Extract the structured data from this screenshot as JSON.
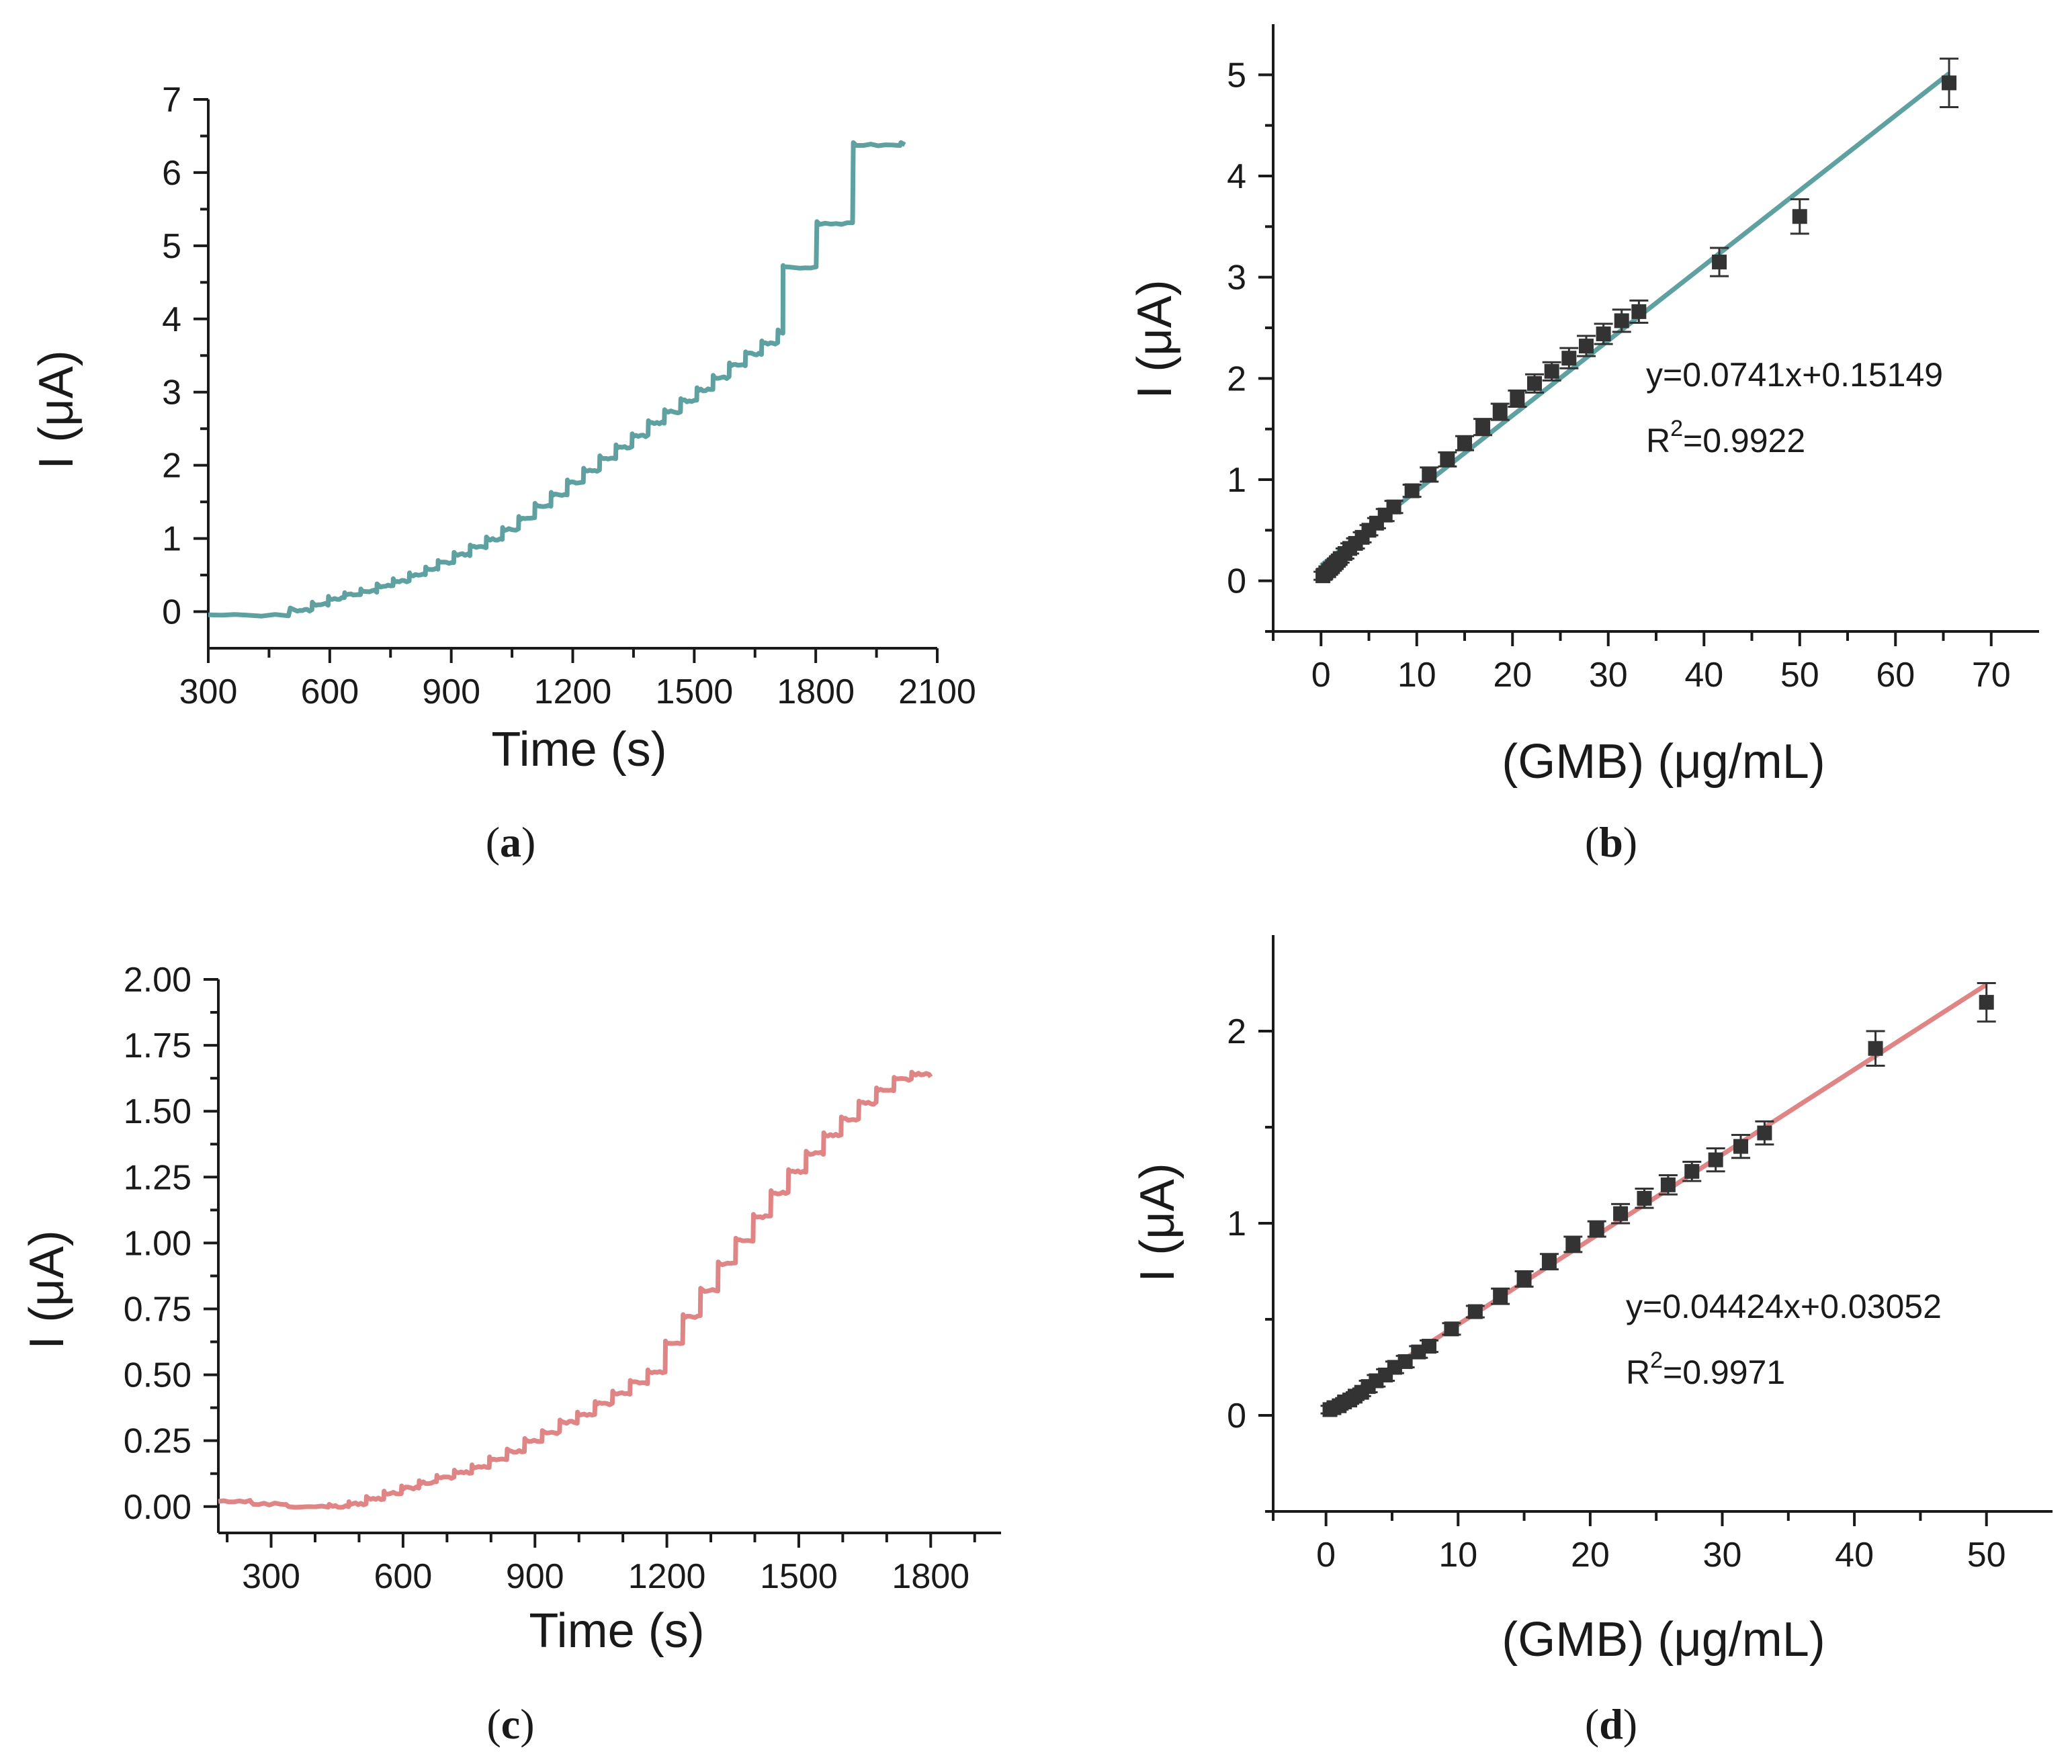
{
  "colors": {
    "teal": "#5fa0a0",
    "salmon": "#e08585",
    "marker": "#333333",
    "text": "#1a1a1a"
  },
  "chart_data": [
    {
      "panel": "(a)",
      "panel_letter": "a",
      "type": "line",
      "xlabel": "Time (s)",
      "ylabel": "I (μA)",
      "xlim": [
        300,
        2100
      ],
      "ylim": [
        -0.5,
        7
      ],
      "xticks": [
        300,
        600,
        900,
        1200,
        1500,
        1800,
        2100
      ],
      "yticks": [
        0,
        1,
        2,
        3,
        4,
        5,
        6,
        7
      ],
      "color": "#5fa0a0",
      "steps": [
        [
          300,
          -0.05
        ],
        [
          520,
          0.02
        ],
        [
          560,
          0.1
        ],
        [
          600,
          0.18
        ],
        [
          640,
          0.23
        ],
        [
          680,
          0.28
        ],
        [
          720,
          0.35
        ],
        [
          760,
          0.42
        ],
        [
          800,
          0.5
        ],
        [
          840,
          0.58
        ],
        [
          870,
          0.67
        ],
        [
          910,
          0.78
        ],
        [
          950,
          0.88
        ],
        [
          990,
          0.99
        ],
        [
          1030,
          1.12
        ],
        [
          1070,
          1.27
        ],
        [
          1110,
          1.45
        ],
        [
          1150,
          1.6
        ],
        [
          1190,
          1.77
        ],
        [
          1230,
          1.93
        ],
        [
          1270,
          2.1
        ],
        [
          1310,
          2.25
        ],
        [
          1350,
          2.4
        ],
        [
          1390,
          2.58
        ],
        [
          1430,
          2.73
        ],
        [
          1470,
          2.88
        ],
        [
          1510,
          3.03
        ],
        [
          1550,
          3.2
        ],
        [
          1590,
          3.37
        ],
        [
          1630,
          3.52
        ],
        [
          1670,
          3.67
        ],
        [
          1710,
          3.82
        ],
        [
          1720,
          4.7
        ],
        [
          1810,
          5.3
        ],
        [
          1900,
          6.38
        ],
        [
          2020,
          6.38
        ]
      ],
      "series": [
        {
          "name": "",
          "points": []
        }
      ]
    },
    {
      "panel": "(b)",
      "panel_letter": "b",
      "type": "scatter",
      "xlabel": "(GMB) (μg/mL)",
      "ylabel": "I (μA)",
      "xlim": [
        -5,
        75
      ],
      "ylim": [
        -0.5,
        5.5
      ],
      "xticks": [
        0,
        10,
        20,
        30,
        40,
        50,
        60,
        70
      ],
      "yticks": [
        0,
        1,
        2,
        3,
        4,
        5
      ],
      "color": "#5fa0a0",
      "equation": "y=0.0741x+0.15149",
      "r2_prefix": "R",
      "r2_sup": "2",
      "r2_value": "=0.9922",
      "fit": {
        "slope": 0.0741,
        "intercept": 0.15149,
        "x_range": [
          0,
          65.6
        ]
      },
      "points": [
        {
          "x": 0.2,
          "y": 0.05,
          "err": 0.04
        },
        {
          "x": 0.5,
          "y": 0.08,
          "err": 0.04
        },
        {
          "x": 0.8,
          "y": 0.1,
          "err": 0.04
        },
        {
          "x": 1.2,
          "y": 0.14,
          "err": 0.04
        },
        {
          "x": 1.6,
          "y": 0.18,
          "err": 0.04
        },
        {
          "x": 2.0,
          "y": 0.22,
          "err": 0.04
        },
        {
          "x": 2.5,
          "y": 0.27,
          "err": 0.05
        },
        {
          "x": 3.0,
          "y": 0.32,
          "err": 0.05
        },
        {
          "x": 3.6,
          "y": 0.37,
          "err": 0.05
        },
        {
          "x": 4.3,
          "y": 0.43,
          "err": 0.05
        },
        {
          "x": 5.0,
          "y": 0.5,
          "err": 0.05
        },
        {
          "x": 5.8,
          "y": 0.57,
          "err": 0.05
        },
        {
          "x": 6.7,
          "y": 0.65,
          "err": 0.06
        },
        {
          "x": 7.6,
          "y": 0.73,
          "err": 0.06
        },
        {
          "x": 9.5,
          "y": 0.89,
          "err": 0.06
        },
        {
          "x": 11.3,
          "y": 1.05,
          "err": 0.07
        },
        {
          "x": 13.2,
          "y": 1.2,
          "err": 0.07
        },
        {
          "x": 15.0,
          "y": 1.36,
          "err": 0.07
        },
        {
          "x": 16.9,
          "y": 1.52,
          "err": 0.08
        },
        {
          "x": 18.7,
          "y": 1.67,
          "err": 0.08
        },
        {
          "x": 20.5,
          "y": 1.8,
          "err": 0.08
        },
        {
          "x": 22.3,
          "y": 1.95,
          "err": 0.09
        },
        {
          "x": 24.1,
          "y": 2.07,
          "err": 0.09
        },
        {
          "x": 25.9,
          "y": 2.2,
          "err": 0.1
        },
        {
          "x": 27.7,
          "y": 2.32,
          "err": 0.1
        },
        {
          "x": 29.5,
          "y": 2.44,
          "err": 0.1
        },
        {
          "x": 31.4,
          "y": 2.57,
          "err": 0.11
        },
        {
          "x": 33.2,
          "y": 2.66,
          "err": 0.11
        },
        {
          "x": 41.6,
          "y": 3.15,
          "err": 0.14
        },
        {
          "x": 50.0,
          "y": 3.6,
          "err": 0.17
        },
        {
          "x": 65.6,
          "y": 4.92,
          "err": 0.24
        }
      ]
    },
    {
      "panel": "(c)",
      "panel_letter": "c",
      "type": "line",
      "xlabel": "Time (s)",
      "ylabel": "I (μA)",
      "xlim": [
        180,
        1960
      ],
      "ylim": [
        -0.1,
        2.0
      ],
      "xticks": [
        300,
        600,
        900,
        1200,
        1500,
        1800
      ],
      "xtick_marks": [
        200,
        300,
        400,
        500,
        600,
        700,
        800,
        900,
        1000,
        1100,
        1200,
        1300,
        1400,
        1500,
        1600,
        1700,
        1800,
        1900
      ],
      "yticks": [
        0.0,
        0.25,
        0.5,
        0.75,
        1.0,
        1.25,
        1.5,
        1.75,
        2.0
      ],
      "ytick_labels": [
        "0.00",
        "0.25",
        "0.50",
        "0.75",
        "1.00",
        "1.25",
        "1.50",
        "1.75",
        "2.00"
      ],
      "color": "#e08585",
      "steps": [
        [
          180,
          0.02
        ],
        [
          260,
          0.01
        ],
        [
          340,
          0.0
        ],
        [
          440,
          0.0
        ],
        [
          480,
          0.01
        ],
        [
          520,
          0.03
        ],
        [
          560,
          0.05
        ],
        [
          600,
          0.07
        ],
        [
          640,
          0.09
        ],
        [
          680,
          0.11
        ],
        [
          720,
          0.13
        ],
        [
          760,
          0.15
        ],
        [
          800,
          0.18
        ],
        [
          840,
          0.21
        ],
        [
          880,
          0.25
        ],
        [
          920,
          0.28
        ],
        [
          960,
          0.32
        ],
        [
          1000,
          0.35
        ],
        [
          1040,
          0.39
        ],
        [
          1080,
          0.43
        ],
        [
          1120,
          0.47
        ],
        [
          1160,
          0.51
        ],
        [
          1200,
          0.62
        ],
        [
          1240,
          0.72
        ],
        [
          1280,
          0.82
        ],
        [
          1320,
          0.92
        ],
        [
          1360,
          1.01
        ],
        [
          1400,
          1.1
        ],
        [
          1440,
          1.19
        ],
        [
          1480,
          1.27
        ],
        [
          1520,
          1.34
        ],
        [
          1560,
          1.41
        ],
        [
          1600,
          1.47
        ],
        [
          1640,
          1.53
        ],
        [
          1680,
          1.58
        ],
        [
          1720,
          1.62
        ],
        [
          1760,
          1.64
        ],
        [
          1800,
          1.63
        ]
      ],
      "series": [
        {
          "name": "",
          "points": []
        }
      ]
    },
    {
      "panel": "(d)",
      "panel_letter": "d",
      "type": "scatter",
      "xlabel": "(GMB) (μg/mL)",
      "ylabel": "I (μA)",
      "xlim": [
        -4,
        55
      ],
      "ylim": [
        -0.5,
        2.5
      ],
      "xticks": [
        0,
        10,
        20,
        30,
        40,
        50
      ],
      "yticks": [
        0,
        1,
        2
      ],
      "color": "#e08585",
      "equation": "y=0.04424x+0.03052",
      "r2_prefix": "R",
      "r2_sup": "2",
      "r2_value": "=0.9971",
      "fit": {
        "slope": 0.04424,
        "intercept": 0.03052,
        "x_range": [
          0.2,
          50
        ]
      },
      "points": [
        {
          "x": 0.3,
          "y": 0.03,
          "err": 0.02
        },
        {
          "x": 0.6,
          "y": 0.04,
          "err": 0.02
        },
        {
          "x": 1.0,
          "y": 0.05,
          "err": 0.02
        },
        {
          "x": 1.4,
          "y": 0.07,
          "err": 0.02
        },
        {
          "x": 1.8,
          "y": 0.08,
          "err": 0.02
        },
        {
          "x": 2.2,
          "y": 0.1,
          "err": 0.02
        },
        {
          "x": 2.7,
          "y": 0.12,
          "err": 0.02
        },
        {
          "x": 3.2,
          "y": 0.15,
          "err": 0.03
        },
        {
          "x": 3.8,
          "y": 0.18,
          "err": 0.03
        },
        {
          "x": 4.5,
          "y": 0.21,
          "err": 0.03
        },
        {
          "x": 5.2,
          "y": 0.25,
          "err": 0.03
        },
        {
          "x": 6.0,
          "y": 0.28,
          "err": 0.03
        },
        {
          "x": 7.0,
          "y": 0.33,
          "err": 0.03
        },
        {
          "x": 7.8,
          "y": 0.36,
          "err": 0.03
        },
        {
          "x": 9.5,
          "y": 0.45,
          "err": 0.03
        },
        {
          "x": 11.3,
          "y": 0.54,
          "err": 0.03
        },
        {
          "x": 13.2,
          "y": 0.62,
          "err": 0.04
        },
        {
          "x": 15.0,
          "y": 0.71,
          "err": 0.04
        },
        {
          "x": 16.9,
          "y": 0.8,
          "err": 0.04
        },
        {
          "x": 18.7,
          "y": 0.89,
          "err": 0.04
        },
        {
          "x": 20.5,
          "y": 0.97,
          "err": 0.04
        },
        {
          "x": 22.3,
          "y": 1.05,
          "err": 0.05
        },
        {
          "x": 24.1,
          "y": 1.13,
          "err": 0.05
        },
        {
          "x": 25.9,
          "y": 1.2,
          "err": 0.05
        },
        {
          "x": 27.7,
          "y": 1.27,
          "err": 0.05
        },
        {
          "x": 29.5,
          "y": 1.33,
          "err": 0.06
        },
        {
          "x": 31.4,
          "y": 1.4,
          "err": 0.06
        },
        {
          "x": 33.2,
          "y": 1.47,
          "err": 0.06
        },
        {
          "x": 41.6,
          "y": 1.91,
          "err": 0.09
        },
        {
          "x": 50.0,
          "y": 2.15,
          "err": 0.1
        }
      ]
    }
  ]
}
